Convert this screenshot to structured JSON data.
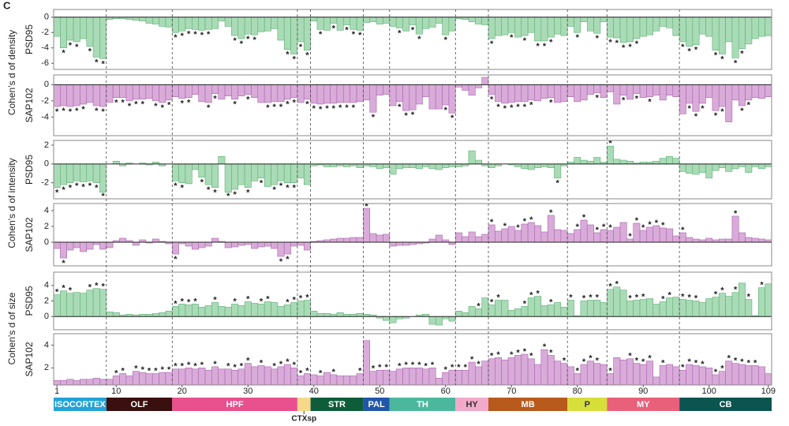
{
  "panel_label": "C",
  "x_axis": {
    "xlim": [
      0.5,
      109.5
    ],
    "xticks": [
      1,
      10,
      20,
      30,
      40,
      50,
      60,
      70,
      80,
      90,
      100,
      109
    ]
  },
  "regions": [
    {
      "name": "ISOCORTEX",
      "start": 1,
      "end": 8,
      "color": "#22a3d8"
    },
    {
      "name": "OLF",
      "start": 9,
      "end": 18,
      "color": "#3a0f10"
    },
    {
      "name": "HPF",
      "start": 19,
      "end": 37,
      "color": "#e8508e"
    },
    {
      "name": "CTXsp",
      "start": 38,
      "end": 39,
      "color": "#f5d88a"
    },
    {
      "name": "STR",
      "start": 40,
      "end": 47,
      "color": "#0f5c3a"
    },
    {
      "name": "PAL",
      "start": 48,
      "end": 51,
      "color": "#1f56a8"
    },
    {
      "name": "TH",
      "start": 52,
      "end": 61,
      "color": "#4bb89e"
    },
    {
      "name": "HY",
      "start": 62,
      "end": 66,
      "color": "#f2aacb"
    },
    {
      "name": "MB",
      "start": 67,
      "end": 78,
      "color": "#b85a1c"
    },
    {
      "name": "P",
      "start": 79,
      "end": 84,
      "color": "#d6df3a"
    },
    {
      "name": "MY",
      "start": 85,
      "end": 95,
      "color": "#e8607a"
    },
    {
      "name": "CB",
      "start": 96,
      "end": 109,
      "color": "#0c5450"
    }
  ],
  "chart_data": [
    {
      "type": "bar",
      "group_label": "Cohen's d of density",
      "ylabel": "PSD95",
      "color": "#a9dbb6",
      "ylim": [
        -6.8,
        1
      ],
      "yticks": [
        0,
        -2,
        -4,
        -6
      ],
      "star": "*",
      "values": [
        -2.5,
        -4,
        -3,
        -3.2,
        -2.8,
        -3.8,
        -5.2,
        -5.4,
        -0.3,
        -0.2,
        -0.2,
        -0.3,
        -0.4,
        -0.5,
        -0.8,
        -0.9,
        -1.2,
        -1.3,
        -2,
        -1.8,
        -1.5,
        -1.6,
        -1.7,
        -1.6,
        -1.5,
        -0.5,
        -1.2,
        -2.4,
        -2.8,
        -2.2,
        -2.3,
        -1.9,
        -1.8,
        -1.5,
        -3,
        -4.2,
        -4.8,
        -3.2,
        -4.3,
        -0.5,
        -1.6,
        -1.7,
        -0.8,
        -1.7,
        -1,
        -1.6,
        -1.7,
        -0.7,
        -0.6,
        -0.9,
        -0.8,
        -1.2,
        -1.4,
        -1.8,
        -1,
        -2.2,
        -1.5,
        -1.3,
        -0.8,
        -2.3,
        -1.8,
        -0.2,
        -0.3,
        -0.6,
        -0.9,
        -1,
        -2.8,
        -2.4,
        -2.3,
        -2,
        -2.6,
        -2.4,
        -2,
        -3.1,
        -3.1,
        -2.6,
        -2.2,
        -2.4,
        -1.2,
        -2,
        -0.6,
        -1.8,
        -2.1,
        -0.6,
        -2.6,
        -2.7,
        -3.3,
        -3.2,
        -2.8,
        -2.5,
        -2.3,
        -1.8,
        -1.2,
        -1.4,
        -2.4,
        -3.2,
        -3.8,
        -3.6,
        -2.2,
        -2.5,
        -4.3,
        -4.8,
        -3.2,
        -5.3,
        -4.1,
        -3.5,
        -2.8,
        -2.5,
        -2.4
      ],
      "starred": [
        2,
        3,
        4,
        6,
        7,
        8,
        19,
        20,
        21,
        22,
        23,
        24,
        28,
        29,
        30,
        31,
        36,
        37,
        38,
        39,
        41,
        43,
        45,
        46,
        47,
        53,
        55,
        56,
        60,
        67,
        70,
        72,
        74,
        75,
        76,
        80,
        83,
        85,
        86,
        87,
        88,
        89,
        96,
        97,
        98,
        101,
        102,
        104,
        105
      ]
    },
    {
      "type": "bar",
      "ylabel": "SAP102",
      "color": "#d9abd9",
      "ylim": [
        -6.3,
        1.2
      ],
      "yticks": [
        0,
        -2,
        -4
      ],
      "star": "*",
      "values": [
        -2.7,
        -2.6,
        -2.7,
        -2.6,
        -2.4,
        -2.2,
        -2.6,
        -2.7,
        -2.2,
        -1.6,
        -1.6,
        -2,
        -1.8,
        -1.8,
        -1.7,
        -2,
        -2.2,
        -1.9,
        -1.5,
        -1.7,
        -1.6,
        -1.2,
        -2.1,
        -2.2,
        -1.1,
        -1.8,
        -1.4,
        -1.8,
        -1.4,
        -1.2,
        -1.6,
        -2.2,
        -2.2,
        -2.1,
        -2.1,
        -1.8,
        -1.6,
        -2.2,
        -1.8,
        -2.3,
        -2.4,
        -2.3,
        -2.3,
        -2.2,
        -2.2,
        -2.2,
        -2.1,
        -1.9,
        -3.4,
        -1.3,
        -1.2,
        -2.6,
        -2.1,
        -3.2,
        -3.1,
        -2.4,
        -1.5,
        -3,
        -3,
        -2.5,
        -3.5,
        -0.3,
        -0.7,
        -1.3,
        -0.4,
        0.9,
        -1.2,
        -2.1,
        -2.3,
        -2.2,
        -2.1,
        -2.1,
        -1.9,
        -2,
        -1.7,
        -1.6,
        -2.2,
        -2.1,
        -1.5,
        -2.1,
        -1.9,
        -1.2,
        -1,
        -1.6,
        -0.9,
        -2.4,
        -1.3,
        -1.8,
        -1.1,
        -1.6,
        -1.5,
        -1.3,
        -1.9,
        -1.3,
        -1.5,
        -3.6,
        -2.3,
        -3.3,
        -2.3,
        -1.6,
        -3.2,
        -2.7,
        -4.6,
        -1.9,
        -2.6,
        -1.9,
        -1.6,
        -1.7,
        -1.5
      ],
      "starred": [
        1,
        2,
        3,
        4,
        5,
        7,
        8,
        10,
        11,
        12,
        13,
        14,
        16,
        17,
        18,
        20,
        21,
        24,
        25,
        28,
        30,
        33,
        34,
        35,
        36,
        37,
        39,
        40,
        41,
        42,
        43,
        44,
        45,
        46,
        49,
        53,
        54,
        55,
        60,
        61,
        67,
        68,
        69,
        70,
        71,
        72,
        73,
        76,
        83,
        87,
        89,
        91,
        97,
        98,
        99,
        101,
        102,
        105,
        106
      ]
    },
    {
      "type": "bar",
      "group_label": "Cohen's d of intensity",
      "ylabel": "PSD95",
      "color": "#a9dbb6",
      "ylim": [
        -3.7,
        2.5
      ],
      "yticks": [
        2,
        0,
        -2
      ],
      "star": "*",
      "values": [
        -2.5,
        -2.2,
        -2,
        -1.8,
        -1.9,
        -1.8,
        -2,
        -3,
        0,
        0.3,
        -0.2,
        0.1,
        0,
        0.1,
        -0.1,
        0.2,
        -0.2,
        0,
        -1.8,
        -2,
        -2.1,
        -0.6,
        -1.4,
        -2.2,
        -2.5,
        0.8,
        -3,
        -2.7,
        -2.2,
        -2.5,
        -1.8,
        -1.5,
        -2.4,
        -2.2,
        -1.8,
        -2,
        -2,
        -1.5,
        -2.2,
        -0.2,
        -0.1,
        -0.3,
        -0.3,
        -0.2,
        -0.3,
        -0.2,
        -0.4,
        -0.2,
        -0.3,
        -0.5,
        -0.4,
        -1.1,
        -0.5,
        -0.4,
        -0.4,
        -0.5,
        -0.3,
        -0.5,
        -0.6,
        -0.4,
        -0.3,
        -0.3,
        -0.2,
        1.4,
        0.4,
        -0.2,
        -0.4,
        -0.2,
        0,
        -0.1,
        -0.3,
        -0.5,
        -0.6,
        -0.4,
        -0.3,
        -0.4,
        -1.5,
        -0.2,
        0.2,
        0.7,
        0.4,
        0.3,
        0.7,
        0.2,
        1.9,
        0.5,
        0.4,
        0.3,
        0.1,
        0.2,
        0.2,
        0.3,
        0.6,
        0.8,
        0.6,
        -0.8,
        -1,
        -1.1,
        -0.9,
        -1.5,
        -0.7,
        -0.4,
        -0.8,
        -0.5,
        -0.3,
        -0.9,
        -0.3,
        -0.5,
        -0.3
      ],
      "starred": [
        1,
        2,
        3,
        4,
        5,
        6,
        7,
        8,
        19,
        20,
        23,
        24,
        25,
        27,
        28,
        30,
        32,
        34,
        35,
        36,
        37,
        77,
        85
      ]
    },
    {
      "type": "bar",
      "ylabel": "SAP102",
      "color": "#d9abd9",
      "ylim": [
        -3,
        4.9
      ],
      "yticks": [
        4,
        2,
        0
      ],
      "star": "*",
      "values": [
        -0.8,
        -2,
        -1,
        -0.7,
        -1.2,
        -0.9,
        -0.3,
        -0.9,
        -0.7,
        0.2,
        0.5,
        0.2,
        -0.4,
        0.3,
        -0.1,
        0.4,
        0.1,
        -0.2,
        -1.5,
        -0.2,
        -0.5,
        -0.9,
        -0.7,
        -0.5,
        0.5,
        0.1,
        -0.7,
        -0.6,
        -0.4,
        -0.3,
        -0.8,
        -0.6,
        -0.5,
        -0.8,
        -1.8,
        -1.5,
        -0.5,
        -0.4,
        -1,
        0.1,
        0.2,
        0.3,
        0.4,
        0.5,
        0.5,
        0.6,
        0.6,
        4.3,
        1.1,
        0.9,
        1,
        -0.5,
        -0.4,
        -0.4,
        -0.3,
        -0.2,
        -0.1,
        0.4,
        0.9,
        0.3,
        -0.3,
        1.2,
        0.7,
        1.3,
        0.7,
        1,
        2.2,
        1.4,
        1.7,
        2,
        1.5,
        2.3,
        2.5,
        2.1,
        1.3,
        3.4,
        1.6,
        1.5,
        1.1,
        1.6,
        2.8,
        2.2,
        1.2,
        1.6,
        1.5,
        1.9,
        2.5,
        0.4,
        2.4,
        1.5,
        1.9,
        2.1,
        1.8,
        1.7,
        0.8,
        1.2,
        0.6,
        0.4,
        0.3,
        0.5,
        0.3,
        0.4,
        0.4,
        3.3,
        1.2,
        0.6,
        0.5,
        0.4,
        0.3
      ],
      "starred": [
        2,
        19,
        35,
        36,
        48,
        67,
        69,
        71,
        72,
        73,
        76,
        80,
        81,
        83,
        84,
        85,
        88,
        89,
        90,
        91,
        92,
        93,
        96,
        104
      ]
    },
    {
      "type": "bar",
      "group_label": "Cohen's d of size",
      "ylabel": "PSD95",
      "color": "#a9dbb6",
      "ylim": [
        -1.7,
        5.7
      ],
      "yticks": [
        4,
        2,
        0
      ],
      "star": "*",
      "values": [
        2.8,
        3.3,
        3,
        3.1,
        3,
        3.4,
        3.6,
        3.5,
        0.6,
        0.5,
        0.2,
        0.3,
        0.2,
        0.3,
        0.3,
        0.4,
        0.5,
        0.7,
        1.3,
        1.6,
        1.5,
        1.6,
        1.2,
        1.4,
        1.8,
        1.3,
        1.2,
        1.6,
        1.4,
        1.9,
        1.7,
        1.6,
        1.9,
        1.8,
        1.3,
        1.5,
        1.8,
        2,
        2.1,
        0.7,
        0.4,
        0.4,
        0.3,
        0.5,
        0.3,
        0.3,
        0.4,
        0.3,
        0.2,
        -0.2,
        -0.5,
        -0.8,
        -0.3,
        -0.2,
        0,
        0.2,
        0.3,
        -1,
        -1.1,
        -0.3,
        -0.6,
        0.7,
        0.5,
        1.3,
        1,
        2.4,
        1.5,
        2.1,
        2.1,
        0.8,
        1,
        1.3,
        2.4,
        2.6,
        1.4,
        1.5,
        1.8,
        1.2,
        2.1,
        0.1,
        2,
        2.1,
        2.1,
        1.8,
        3.5,
        3.8,
        3.4,
        2,
        2.1,
        2.2,
        2.3,
        1.6,
        1.9,
        2.4,
        2.5,
        2.2,
        2.1,
        2,
        1.8,
        2.3,
        2.5,
        3,
        2.6,
        3.1,
        4.3,
        2.2,
        0.1,
        3.7,
        4.2
      ],
      "starred": [
        1,
        2,
        3,
        6,
        7,
        8,
        19,
        20,
        21,
        22,
        25,
        28,
        30,
        32,
        33,
        36,
        37,
        38,
        39,
        65,
        67,
        68,
        72,
        73,
        74,
        76,
        79,
        81,
        82,
        83,
        85,
        86,
        88,
        89,
        90,
        93,
        94,
        96,
        97,
        98,
        101,
        102,
        104,
        106,
        108
      ]
    },
    {
      "type": "bar",
      "ylabel": "SAP102",
      "color": "#d9abd9",
      "ylim": [
        0.5,
        5
      ],
      "yticks": [
        4,
        2
      ],
      "star": "*",
      "values": [
        0.9,
        0.9,
        1,
        0.9,
        1,
        1,
        1.1,
        1,
        1,
        1.3,
        1.5,
        1.3,
        1.7,
        1.6,
        1.5,
        1.5,
        1.6,
        1.6,
        1.9,
        1.9,
        2,
        1.9,
        2,
        1.8,
        2.1,
        1.9,
        1.9,
        1.8,
        1.9,
        2.4,
        2.1,
        2.2,
        2.1,
        1.9,
        2.1,
        2.3,
        2,
        1.3,
        1.5,
        1.4,
        1.3,
        1.6,
        1.4,
        1.3,
        1.3,
        1.3,
        1.5,
        4.4,
        1.7,
        1.8,
        1.8,
        1.7,
        1.9,
        2,
        2,
        2,
        1.9,
        2,
        1.1,
        1.6,
        1.8,
        1.8,
        1.8,
        2.5,
        2.1,
        2.6,
        2.8,
        2.9,
        2.7,
        2.9,
        3.1,
        3.2,
        2.8,
        2.3,
        3.6,
        3.1,
        2.6,
        2.4,
        2.1,
        1.5,
        2.3,
        2.6,
        2.4,
        2.3,
        1.5,
        2.9,
        2.7,
        2.8,
        2.4,
        2.3,
        2.6,
        1.2,
        2.2,
        2.3,
        2.1,
        1.8,
        2.3,
        2.2,
        2.1,
        2,
        1.4,
        1.7,
        2.6,
        2.4,
        2.3,
        2.2,
        2.2,
        2.1,
        1.5
      ],
      "starred": [
        10,
        11,
        13,
        14,
        15,
        16,
        17,
        18,
        19,
        20,
        21,
        22,
        23,
        25,
        27,
        28,
        29,
        30,
        32,
        34,
        35,
        36,
        37,
        38,
        39,
        41,
        43,
        47,
        49,
        50,
        51,
        53,
        54,
        55,
        56,
        57,
        58,
        60,
        61,
        62,
        63,
        64,
        65,
        67,
        68,
        70,
        71,
        72,
        73,
        75,
        76,
        78,
        80,
        81,
        82,
        83,
        85,
        88,
        89,
        90,
        91,
        93,
        96,
        97,
        98,
        99,
        101,
        102,
        103,
        104,
        105,
        106,
        107
      ]
    }
  ]
}
